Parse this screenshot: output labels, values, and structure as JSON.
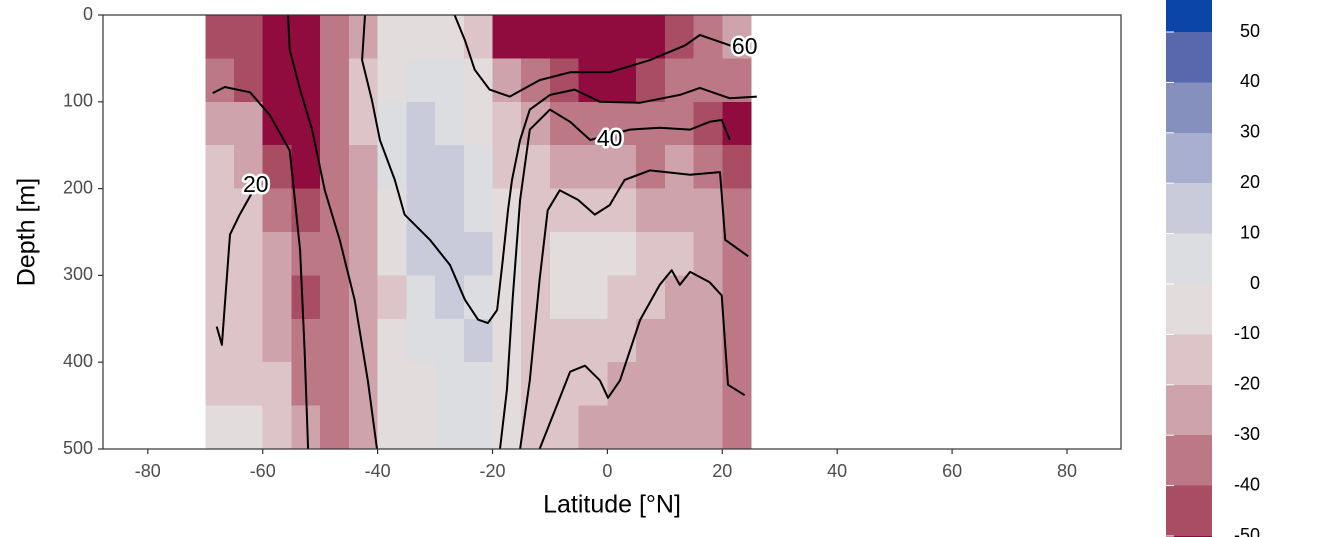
{
  "chart_data": {
    "type": "filled-contour",
    "x_label": "Latitude [°N]",
    "y_label": "Depth [m]",
    "xlim": [
      -87.8,
      89.4
    ],
    "xticks": [
      -80,
      -60,
      -40,
      -20,
      0,
      20,
      40,
      60,
      80
    ],
    "ylim": [
      0,
      500
    ],
    "yticks": [
      0,
      100,
      200,
      300,
      400,
      500
    ],
    "y_reversed": true,
    "x": [
      -67.5,
      -62.5,
      -57.5,
      -52.5,
      -47.5,
      -42.5,
      -37.5,
      -32.5,
      -27.5,
      -22.5,
      -17.5,
      -12.5,
      -7.5,
      -2.5,
      2.5,
      7.5,
      12.5,
      17.5,
      22.5
    ],
    "y": [
      25,
      75,
      125,
      175,
      225,
      275,
      325,
      375,
      425,
      475
    ],
    "z": [
      [
        -45,
        -45,
        -55,
        -55,
        -35,
        -25,
        -5,
        -5,
        -5,
        -15,
        -55,
        -55,
        -55,
        -55,
        -55,
        -55,
        -45,
        -35,
        -25
      ],
      [
        -35,
        -45,
        -55,
        -55,
        -35,
        -15,
        -5,
        5,
        5,
        -5,
        -25,
        -35,
        -45,
        -55,
        -55,
        -45,
        -35,
        -35,
        -35
      ],
      [
        -25,
        -25,
        -55,
        -55,
        -35,
        -15,
        5,
        15,
        5,
        -5,
        -15,
        -25,
        -35,
        -35,
        -35,
        -35,
        -35,
        -45,
        -55
      ],
      [
        -15,
        -25,
        -45,
        -55,
        -35,
        -25,
        5,
        15,
        15,
        5,
        -15,
        -15,
        -25,
        -25,
        -25,
        -35,
        -25,
        -35,
        -45
      ],
      [
        -15,
        -15,
        -35,
        -45,
        -35,
        -25,
        -5,
        15,
        15,
        5,
        -5,
        -15,
        -15,
        -15,
        -15,
        -25,
        -25,
        -25,
        -35
      ],
      [
        -15,
        -15,
        -25,
        -35,
        -35,
        -25,
        -5,
        15,
        15,
        15,
        -5,
        -15,
        -5,
        -5,
        -5,
        -15,
        -15,
        -25,
        -35
      ],
      [
        -15,
        -15,
        -25,
        -45,
        -35,
        -25,
        -15,
        5,
        15,
        5,
        -5,
        -15,
        -5,
        -5,
        -15,
        -15,
        -25,
        -25,
        -35
      ],
      [
        -15,
        -15,
        -25,
        -35,
        -35,
        -25,
        -5,
        5,
        5,
        15,
        -5,
        -15,
        -15,
        -15,
        -15,
        -25,
        -25,
        -25,
        -35
      ],
      [
        -15,
        -15,
        -15,
        -35,
        -35,
        -25,
        -5,
        -5,
        5,
        5,
        -5,
        -15,
        -15,
        -15,
        -25,
        -25,
        -25,
        -25,
        -35
      ],
      [
        -5,
        -5,
        -15,
        -25,
        -35,
        -25,
        -5,
        -5,
        5,
        5,
        -5,
        -15,
        -15,
        -25,
        -25,
        -25,
        -25,
        -25,
        -35
      ]
    ],
    "colorbar": {
      "levels": [
        -60,
        -50,
        -40,
        -30,
        -20,
        -10,
        0,
        10,
        20,
        30,
        40,
        50,
        60
      ],
      "colors": [
        "#900c3e",
        "#a84d62",
        "#bd7886",
        "#cfa3ab",
        "#dcc4c8",
        "#e3dcdd",
        "#dcdde0",
        "#c9cbdb",
        "#a9afcf",
        "#8590be",
        "#5768ad",
        "#0b45a6"
      ],
      "ticks": [
        -50,
        -40,
        -30,
        -20,
        -10,
        0,
        10,
        20,
        30,
        40,
        50
      ]
    },
    "contour_lines": [
      {
        "lat": [
          -68.0,
          -67.1,
          -65.7,
          -64.0,
          -61.2
        ],
        "depth": [
          359,
          380,
          253,
          230,
          197
        ]
      },
      {
        "lat": [
          -68.7,
          -66.6,
          -62.2,
          -58.8,
          -55.3,
          -53.5,
          -52.7,
          -52.1
        ],
        "depth": [
          90,
          83,
          89,
          115,
          156,
          271,
          386,
          500
        ]
      },
      {
        "lat": [
          -55.6,
          -55.3,
          -53.5,
          -51.4,
          -49.2,
          -46.6,
          -44.0,
          -41.7,
          -40.1
        ],
        "depth": [
          0,
          40,
          86,
          132,
          202,
          259,
          328,
          421,
          500
        ]
      },
      {
        "lat": [
          -42.2,
          -42.7,
          -41.0,
          -39.6,
          -37.0,
          -35.3,
          -30.9,
          -27.4,
          -24.8,
          -22.5,
          -20.8,
          -19.2,
          -18.2,
          -17.3,
          -16.6,
          -15.2,
          -13.5,
          -10.0,
          -5.7,
          -1.3,
          5.7,
          12.6,
          16.1,
          21.3,
          26.0
        ],
        "depth": [
          0,
          52,
          98,
          144,
          190,
          230,
          259,
          288,
          328,
          351,
          355,
          340,
          282,
          225,
          190,
          144,
          109,
          92,
          86,
          100,
          101,
          92,
          84,
          96,
          94
        ]
      },
      {
        "lat": [
          -26.6,
          -24.8,
          -23.1,
          -20.5,
          -17.0,
          -11.8,
          -6.5,
          0.4,
          7.4,
          13.5,
          16.1,
          19.6,
          22.2
        ],
        "depth": [
          0,
          29,
          63,
          86,
          94,
          75,
          66,
          66,
          52,
          35,
          23,
          31,
          37
        ]
      },
      {
        "lat": [
          -18.7,
          -17.5,
          -16.5,
          -15.2,
          -13.5,
          -10.0,
          -6.5,
          -3.0,
          3.9,
          9.1,
          14.4,
          17.8,
          19.9,
          21.3
        ],
        "depth": [
          500,
          432,
          328,
          213,
          132,
          109,
          123,
          144,
          132,
          130,
          132,
          123,
          121,
          144
        ]
      },
      {
        "lat": [
          -15.2,
          -13.5,
          -11.8,
          -10.4,
          -8.3,
          -5.1,
          -2.2,
          0.4,
          3.0,
          7.4,
          14.4,
          19.6,
          20.5,
          24.5
        ],
        "depth": [
          500,
          421,
          305,
          225,
          202,
          213,
          230,
          219,
          190,
          179,
          184,
          181,
          259,
          278
        ]
      },
      {
        "lat": [
          -11.8,
          -9.1,
          -6.5,
          -3.9,
          -1.3,
          0.1,
          2.2,
          5.7,
          9.1,
          11.2,
          12.6,
          14.4,
          17.8,
          19.9,
          21.0,
          23.9
        ],
        "depth": [
          500,
          455,
          411,
          404,
          421,
          441,
          421,
          351,
          311,
          294,
          311,
          296,
          308,
          323,
          426,
          438
        ]
      }
    ],
    "contour_labels": [
      {
        "value": 20,
        "lat": -61.2,
        "depth": 197
      },
      {
        "value": 40,
        "lat": 0.4,
        "depth": 144
      },
      {
        "value": 60,
        "lat": 23.9,
        "depth": 38
      }
    ]
  }
}
